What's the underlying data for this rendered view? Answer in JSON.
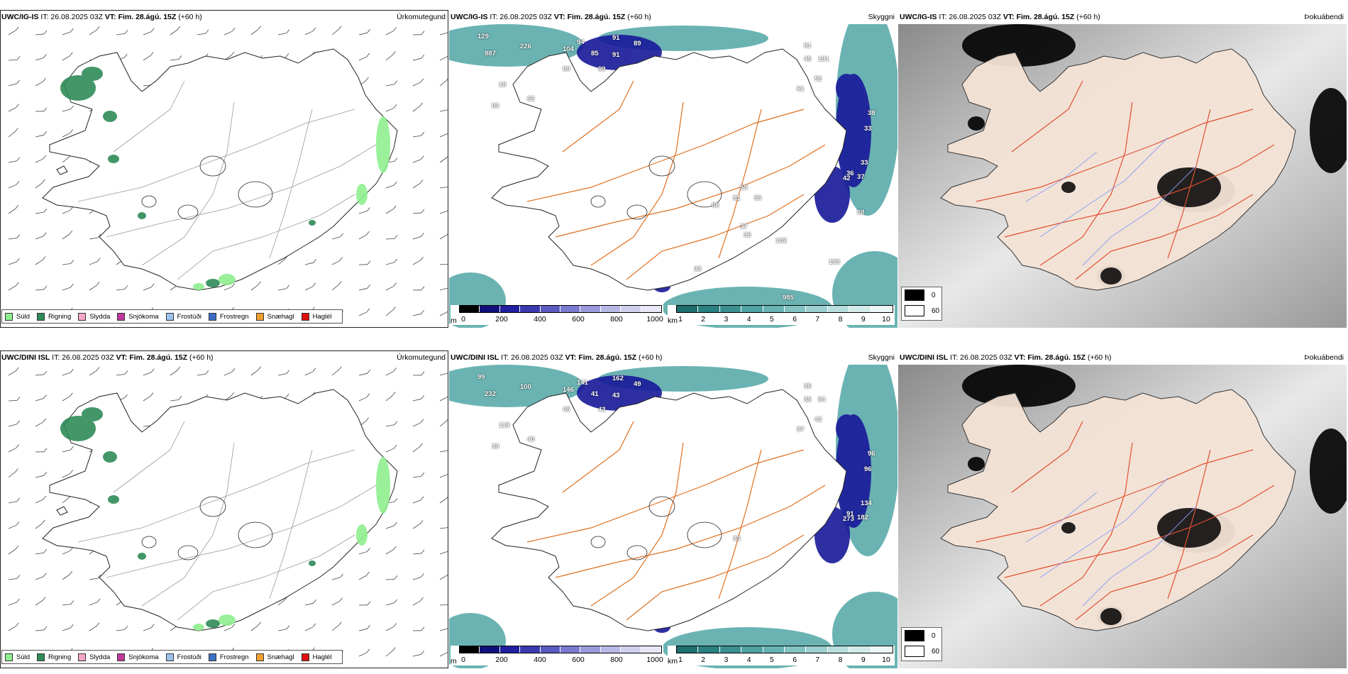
{
  "panels": [
    {
      "model": "UWC/IG-IS",
      "it_label": "IT:",
      "it_value": "26.08.2025 03Z",
      "vt_label": "VT:",
      "vt_value": "Fim. 28.ágú. 15Z",
      "lead": "(+60 h)",
      "title": "Úrkomutegund",
      "kind": "precip"
    },
    {
      "model": "UWC/IG-IS",
      "it_label": "IT:",
      "it_value": "26.08.2025 03Z",
      "vt_label": "VT:",
      "vt_value": "Fim. 28.ágú. 15Z",
      "lead": "(+60 h)",
      "title": "Skyggni",
      "kind": "vis",
      "labels": [
        "129",
        "226",
        "887",
        "94",
        "91",
        "89",
        "104",
        "85",
        "91",
        "69",
        "99",
        "18",
        "93",
        "62",
        "81",
        "45",
        "191",
        "52",
        "61",
        "38",
        "33",
        "33",
        "36",
        "37",
        "42",
        "81",
        "58",
        "56",
        "86",
        "37",
        "36",
        "102",
        "88",
        "153",
        "33",
        "985"
      ]
    },
    {
      "model": "UWC/IG-IS",
      "it_label": "IT:",
      "it_value": "26.08.2025 03Z",
      "vt_label": "VT:",
      "vt_value": "Fim. 28.ágú. 15Z",
      "lead": "(+60 h)",
      "title": "Þokuábendi",
      "kind": "fog"
    },
    {
      "model": "UWC/DINI ISL",
      "it_label": "IT:",
      "it_value": "26.08.2025 03Z",
      "vt_label": "VT:",
      "vt_value": "Fim. 28.ágú. 15Z",
      "lead": "(+60 h)",
      "title": "Úrkomutegund",
      "kind": "precip"
    },
    {
      "model": "UWC/DINI ISL",
      "it_label": "IT:",
      "it_value": "26.08.2025 03Z",
      "vt_label": "VT:",
      "vt_value": "Fim. 28.ágú. 15Z",
      "lead": "(+60 h)",
      "title": "Skyggni",
      "kind": "vis",
      "labels": [
        "99",
        "100",
        "232",
        "141",
        "162",
        "49",
        "146",
        "41",
        "43",
        "45",
        "43",
        "118",
        "39",
        "40",
        "36",
        "35",
        "54",
        "42",
        "97",
        "96",
        "96",
        "134",
        "91",
        "182",
        "273",
        "33"
      ]
    },
    {
      "model": "UWC/DINI ISL",
      "it_label": "IT:",
      "it_value": "26.08.2025 03Z",
      "vt_label": "VT:",
      "vt_value": "Fim. 28.ágú. 15Z",
      "lead": "(+60 h)",
      "title": "Þokuábendi",
      "kind": "fog"
    }
  ],
  "precip_legend": [
    {
      "label": "Súld",
      "color": "#8fef8f"
    },
    {
      "label": "Rigning",
      "color": "#2e8b57"
    },
    {
      "label": "Slydda",
      "color": "#f4a6c8"
    },
    {
      "label": "Snjókoma",
      "color": "#c0399b"
    },
    {
      "label": "Frostúði",
      "color": "#9cc3ee"
    },
    {
      "label": "Frostregn",
      "color": "#3a6fc4"
    },
    {
      "label": "Snæhagl",
      "color": "#f0a030"
    },
    {
      "label": "Haglél",
      "color": "#e01010"
    }
  ],
  "height_scale": {
    "unit": "m",
    "ticks": [
      "0",
      "200",
      "400",
      "600",
      "800",
      "1000"
    ],
    "colors": [
      "#000000",
      "#10107a",
      "#1f1fa0",
      "#3a3ab0",
      "#5a5ac0",
      "#7a7ad0",
      "#9a9adc",
      "#b8b8e6",
      "#d0d0ee",
      "#e6e6f6"
    ]
  },
  "vis_scale": {
    "unit": "km",
    "ticks": [
      "1",
      "2",
      "3",
      "4",
      "5",
      "6",
      "7",
      "8",
      "9",
      "10"
    ],
    "colors": [
      "#1e6e6e",
      "#2a8080",
      "#3a9090",
      "#4fa3a3",
      "#68b2b2",
      "#82c2c2",
      "#9ccfcf",
      "#b8dddd",
      "#d2eaea",
      "#ecf6f6"
    ]
  },
  "fog_legend": [
    {
      "label": "0",
      "color": "#000000"
    },
    {
      "label": "60",
      "color": "#ffffff"
    }
  ]
}
